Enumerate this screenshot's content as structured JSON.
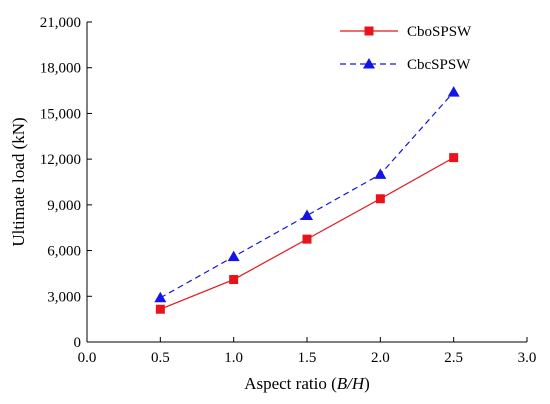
{
  "chart_data": {
    "type": "line",
    "title": "",
    "xlabel": {
      "prefix": "Aspect ratio (",
      "italic": "B/H",
      "suffix": ")"
    },
    "ylabel": "Ultimate load (kN)",
    "xlim": [
      0.0,
      3.0
    ],
    "ylim": [
      0,
      21000
    ],
    "x_ticks": [
      "0.0",
      "0.5",
      "1.0",
      "1.5",
      "2.0",
      "2.5",
      "3.0"
    ],
    "y_ticks": [
      "0",
      "3,000",
      "6,000",
      "9,000",
      "12,000",
      "15,000",
      "18,000",
      "21,000"
    ],
    "grid": false,
    "legend_position": "top-right",
    "x": [
      0.5,
      1.0,
      1.5,
      2.0,
      2.5
    ],
    "series": [
      {
        "name": "CboSPSW",
        "values": [
          2150,
          4100,
          6750,
          9400,
          12100
        ],
        "color": "#e8141a",
        "line_style": "solid",
        "marker": "square"
      },
      {
        "name": "CbcSPSW",
        "values": [
          2900,
          5600,
          8300,
          11000,
          16400
        ],
        "color": "#1414e6",
        "line_style": "dashed",
        "marker": "triangle"
      }
    ]
  }
}
